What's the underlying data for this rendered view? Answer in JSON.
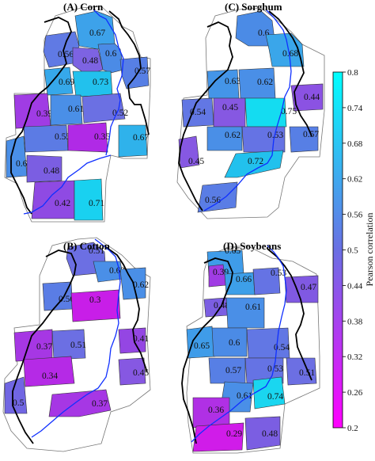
{
  "figure": {
    "panels": [
      {
        "title": "(A) Corn",
        "regions": [
          {
            "v": "0.67",
            "c": "#3da2ea"
          },
          {
            "v": "0.56",
            "c": "#607ae4"
          },
          {
            "v": "0.48",
            "c": "#7d63e2"
          },
          {
            "v": "0.6",
            "c": "#4b8be6"
          },
          {
            "v": "0.57",
            "c": "#577fe5"
          },
          {
            "v": "0.69",
            "c": "#36a8ea"
          },
          {
            "v": "0.73",
            "c": "#22c1ed"
          },
          {
            "v": "0.39",
            "c": "#a03ce4"
          },
          {
            "v": "0.61",
            "c": "#4a8fe7"
          },
          {
            "v": "0.52",
            "c": "#6b70e3"
          },
          {
            "v": "0.55",
            "c": "#5c7be4"
          },
          {
            "v": "0.35",
            "c": "#b02ae6"
          },
          {
            "v": "0.67",
            "c": "#2fb2eb"
          },
          {
            "v": "0.61",
            "c": "#4a8fe7"
          },
          {
            "v": "0.48",
            "c": "#7b5ee2"
          },
          {
            "v": "0.42",
            "c": "#8f4ae3"
          },
          {
            "v": "0.71",
            "c": "#19d1f0"
          }
        ]
      },
      {
        "title": "(C) Sorghum",
        "regions": [
          {
            "v": "0.6",
            "c": "#4b8be6"
          },
          {
            "v": "0.68",
            "c": "#3aa6ea"
          },
          {
            "v": "0.63",
            "c": "#4495e8"
          },
          {
            "v": "0.62",
            "c": "#4a8fe7"
          },
          {
            "v": "0.44",
            "c": "#8b52e3"
          },
          {
            "v": "0.54",
            "c": "#6277e4"
          },
          {
            "v": "0.45",
            "c": "#8658e2"
          },
          {
            "v": "0.75",
            "c": "#14dcf1"
          },
          {
            "v": "0.62",
            "c": "#4a8fe7"
          },
          {
            "v": "0.53",
            "c": "#6573e4"
          },
          {
            "v": "0.57",
            "c": "#577fe5"
          },
          {
            "v": "0.45",
            "c": "#8658e2"
          },
          {
            "v": "0.72",
            "c": "#22c1ed"
          },
          {
            "v": "0.56",
            "c": "#5a7de5"
          }
        ]
      },
      {
        "title": "(B) Cotton",
        "regions": [
          {
            "v": "0.51",
            "c": "#6c6fe3"
          },
          {
            "v": "0.62",
            "c": "#4a8fe7"
          },
          {
            "v": "0.62",
            "c": "#4a8fe7"
          },
          {
            "v": "0.56",
            "c": "#5a7de5"
          },
          {
            "v": "0.3",
            "c": "#c81ee8"
          },
          {
            "v": "0.37",
            "c": "#a637e4"
          },
          {
            "v": "0.51",
            "c": "#6c6fe3"
          },
          {
            "v": "0.41",
            "c": "#9446e3"
          },
          {
            "v": "0.34",
            "c": "#b52ae6"
          },
          {
            "v": "0.45",
            "c": "#8658e2"
          },
          {
            "v": "0.5",
            "c": "#7166e3"
          },
          {
            "v": "0.37",
            "c": "#a637e4"
          }
        ]
      },
      {
        "title": "(D) Soybeans",
        "regions": [
          {
            "v": "0.65",
            "c": "#3f9ce9"
          },
          {
            "v": "0.39",
            "c": "#a03ce4"
          },
          {
            "v": "0.66",
            "c": "#3d9fe9"
          },
          {
            "v": "0.53",
            "c": "#6573e4"
          },
          {
            "v": "0.47",
            "c": "#8059e2"
          },
          {
            "v": "0.48",
            "c": "#7b5ee2"
          },
          {
            "v": "0.61",
            "c": "#4a8fe7"
          },
          {
            "v": "0.65",
            "c": "#3f9ce9"
          },
          {
            "v": "0.6",
            "c": "#4b8be6"
          },
          {
            "v": "0.54",
            "c": "#6277e4"
          },
          {
            "v": "0.57",
            "c": "#577fe5"
          },
          {
            "v": "0.53",
            "c": "#6573e4"
          },
          {
            "v": "0.51",
            "c": "#6c6fe3"
          },
          {
            "v": "0.61",
            "c": "#4a8fe7"
          },
          {
            "v": "0.74",
            "c": "#1ad6f0"
          },
          {
            "v": "0.36",
            "c": "#b030e5"
          },
          {
            "v": "0.29",
            "c": "#d01ce9"
          },
          {
            "v": "0.48",
            "c": "#7b5ee2"
          }
        ]
      }
    ],
    "colorbar": {
      "title": "Pearson correlation",
      "ticks": [
        "0.8",
        "0.74",
        "0.68",
        "0.62",
        "0.56",
        "0.5",
        "0.44",
        "0.38",
        "0.32",
        "0.26",
        "0.2"
      ],
      "color_low": "#ff00ff",
      "color_mid": "#6a6fe3",
      "color_high": "#00ffff"
    },
    "colors": {
      "border": "#000000",
      "river": "#1030ff",
      "no_data": "#ffffff",
      "county_outline": "#777777"
    }
  }
}
